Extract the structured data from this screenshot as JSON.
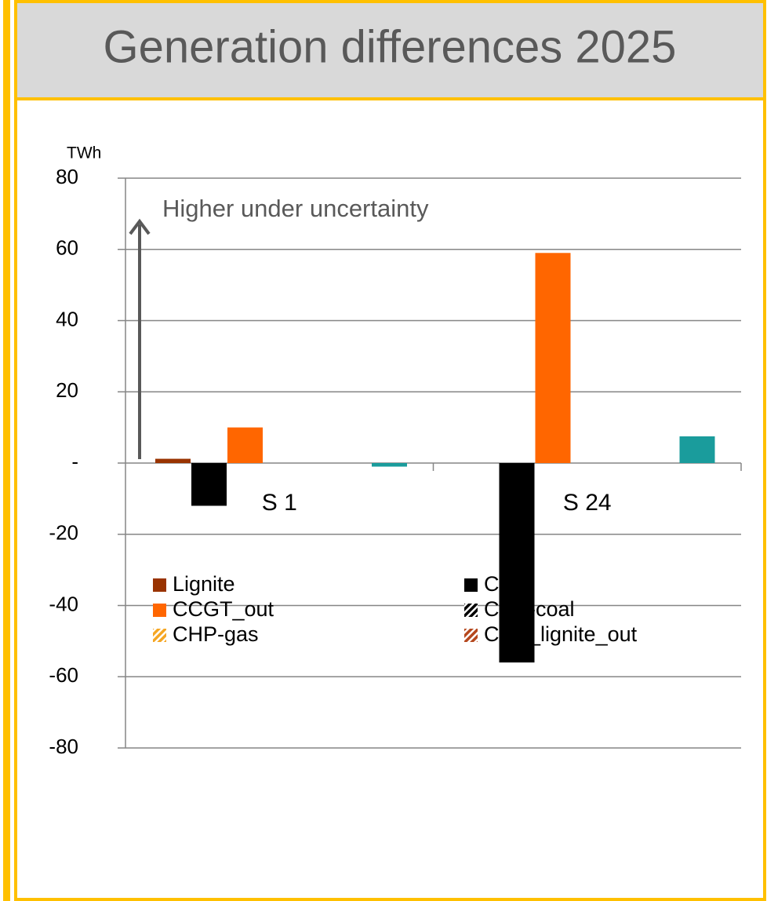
{
  "chart_data": {
    "type": "bar",
    "title": "Generation differences 2025",
    "y_unit": "TWh",
    "annotation": "Higher under uncertainty",
    "categories": [
      "S 1",
      "S 24"
    ],
    "series": [
      {
        "name": "Lignite",
        "color": "#993300",
        "values": [
          1.2,
          0
        ]
      },
      {
        "name": "Coal",
        "color": "#000000",
        "values": [
          -12,
          -56
        ]
      },
      {
        "name": "CCGT_out",
        "color": "#ff6600",
        "values": [
          10,
          59
        ]
      },
      {
        "name": "CHP-coal",
        "color": "#000000",
        "hatched": true,
        "values": [
          0,
          0
        ]
      },
      {
        "name": "CHP-gas",
        "color": "#f5a623",
        "hatched": true,
        "values": [
          0,
          0
        ]
      },
      {
        "name": "CHP_lignite_out",
        "color": "#b5481e",
        "hatched": true,
        "values": [
          0,
          0
        ]
      },
      {
        "color": "#1a9c9c",
        "values": [
          -1,
          7.5
        ]
      }
    ],
    "ylim": [
      -80,
      80
    ],
    "yticks": [
      -80,
      -60,
      -40,
      -20,
      {
        "value": 0,
        "label": "-"
      },
      20,
      40,
      60,
      80
    ],
    "grid": true
  }
}
